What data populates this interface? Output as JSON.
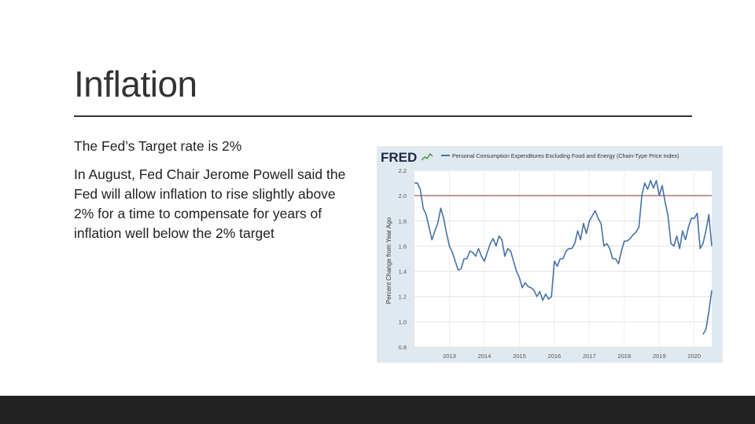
{
  "slide": {
    "title": "Inflation",
    "bullets": [
      "The Fed’s Target rate is 2%",
      "In August, Fed Chair Jerome Powell said the Fed will allow inflation to rise slightly above 2% for a time to compensate for years of inflation well below the 2% target"
    ]
  },
  "colors": {
    "series": "#4572a7",
    "target_line": "#8b3a3a",
    "plot_bg": "#ffffff",
    "frame_bg": "#e1e9f0",
    "bottom_bar": "#222222"
  },
  "chart_data": {
    "type": "line",
    "brand": "FRED",
    "title": "",
    "legend": [
      "Personal Consumption Expenditures Excluding Food and Energy (Chain-Type Price Index)"
    ],
    "xlabel": "",
    "ylabel": "Percent Change from Year Ago",
    "ylim": [
      0.8,
      2.2
    ],
    "yticks": [
      "0.8",
      "1.0",
      "1.2",
      "1.4",
      "1.6",
      "1.8",
      "2.0",
      "2.2"
    ],
    "xlim": [
      "2012-01",
      "2020-07"
    ],
    "xticks": [
      "2013",
      "2014",
      "2015",
      "2016",
      "2017",
      "2018",
      "2019",
      "2020"
    ],
    "grid": true,
    "reference_line": {
      "y": 2.0
    },
    "series": [
      {
        "x": [
          "2012-01",
          "2012-02",
          "2012-03",
          "2012-04",
          "2012-05",
          "2012-06",
          "2012-07",
          "2012-08",
          "2012-09",
          "2012-10",
          "2012-11",
          "2012-12",
          "2013-01",
          "2013-02",
          "2013-03",
          "2013-04",
          "2013-05",
          "2013-06",
          "2013-07",
          "2013-08",
          "2013-09",
          "2013-10",
          "2013-11",
          "2013-12",
          "2014-01",
          "2014-02",
          "2014-03",
          "2014-04",
          "2014-05",
          "2014-06",
          "2014-07",
          "2014-08",
          "2014-09",
          "2014-10",
          "2014-11",
          "2014-12",
          "2015-01",
          "2015-02",
          "2015-03",
          "2015-04",
          "2015-05",
          "2015-06",
          "2015-07",
          "2015-08",
          "2015-09",
          "2015-10",
          "2015-11",
          "2015-12",
          "2016-01",
          "2016-02",
          "2016-03",
          "2016-04",
          "2016-05",
          "2016-06",
          "2016-07",
          "2016-08",
          "2016-09",
          "2016-10",
          "2016-11",
          "2016-12",
          "2017-01",
          "2017-02",
          "2017-03",
          "2017-04",
          "2017-05",
          "2017-06",
          "2017-07",
          "2017-08",
          "2017-09",
          "2017-10",
          "2017-11",
          "2017-12",
          "2018-01",
          "2018-02",
          "2018-03",
          "2018-04",
          "2018-05",
          "2018-06",
          "2018-07",
          "2018-08",
          "2018-09",
          "2018-10",
          "2018-11",
          "2018-12",
          "2019-01",
          "2019-02",
          "2019-03",
          "2019-04",
          "2019-05",
          "2019-06",
          "2019-07",
          "2019-08",
          "2019-09",
          "2019-10",
          "2019-11",
          "2019-12",
          "2020-01",
          "2020-02",
          "2020-03",
          "2020-04",
          "2020-05",
          "2020-06",
          "2020-07"
        ],
        "y": [
          2.1,
          2.1,
          2.05,
          1.9,
          1.85,
          1.75,
          1.65,
          1.72,
          1.78,
          1.9,
          1.82,
          1.7,
          1.6,
          1.55,
          1.48,
          1.41,
          1.42,
          1.5,
          1.5,
          1.56,
          1.55,
          1.52,
          1.58,
          1.52,
          1.48,
          1.55,
          1.62,
          1.66,
          1.6,
          1.68,
          1.65,
          1.52,
          1.58,
          1.56,
          1.48,
          1.4,
          1.35,
          1.27,
          1.31,
          1.28,
          1.27,
          1.25,
          1.2,
          1.24,
          1.17,
          1.22,
          1.18,
          1.2,
          1.48,
          1.44,
          1.5,
          1.5,
          1.56,
          1.58,
          1.58,
          1.62,
          1.72,
          1.65,
          1.78,
          1.7,
          1.8,
          1.84,
          1.88,
          1.82,
          1.78,
          1.6,
          1.62,
          1.58,
          1.5,
          1.5,
          1.46,
          1.56,
          1.64,
          1.64,
          1.66,
          1.69,
          1.71,
          1.75,
          2.0,
          2.1,
          2.05,
          2.12,
          2.06,
          2.12,
          2.0,
          2.08,
          1.95,
          1.84,
          1.62,
          1.6,
          1.68,
          1.58,
          1.72,
          1.65,
          1.75,
          1.82,
          1.82,
          1.86,
          1.58,
          1.62,
          1.72,
          1.85,
          1.6
        ]
      },
      {
        "x": [
          "2020-04",
          "2020-05",
          "2020-06",
          "2020-07"
        ],
        "y": [
          0.9,
          0.94,
          1.08,
          1.25
        ]
      }
    ]
  }
}
